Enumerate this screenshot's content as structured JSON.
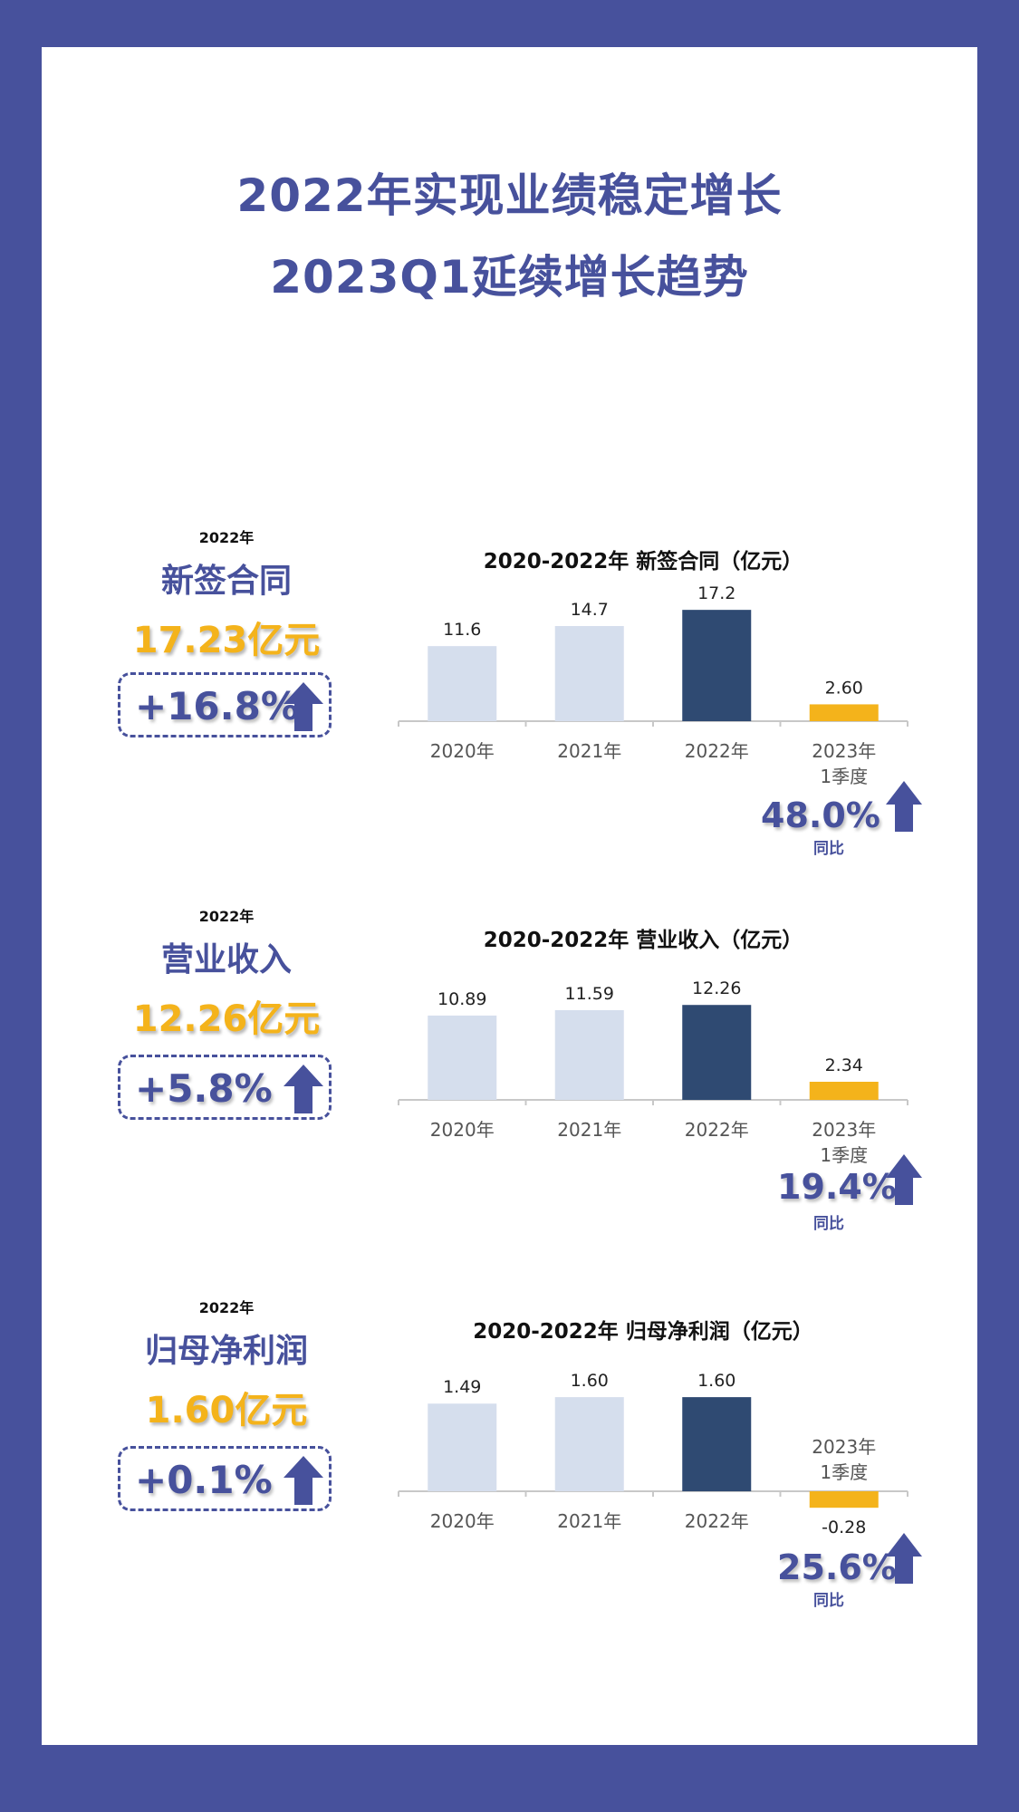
{
  "headline": {
    "line1": "2022年实现业绩稳定增长",
    "line2": "2023Q1延续增长趋势"
  },
  "colors": {
    "frame": "#47519c",
    "accent": "#f4b31b",
    "bar_light": "#d5deed",
    "bar_dark": "#2f4a72",
    "bar_q1": "#f4b31b"
  },
  "icons": {
    "growth": "up-arrow-icon"
  },
  "sections": [
    {
      "year_label": "2022年",
      "metric_name": "新签合同",
      "metric_value": "17.23亿元",
      "growth": "+16.8%",
      "yoy_value": "48.0%",
      "yoy_label": "同比"
    },
    {
      "year_label": "2022年",
      "metric_name": "营业收入",
      "metric_value": "12.26亿元",
      "growth": "+5.8%",
      "yoy_value": "19.4%",
      "yoy_label": "同比"
    },
    {
      "year_label": "2022年",
      "metric_name": "归母净利润",
      "metric_value": "1.60亿元",
      "growth": "+0.1%",
      "yoy_value": "25.6%",
      "yoy_label": "同比"
    }
  ],
  "chart_data": [
    {
      "type": "bar",
      "title": "2020-2022年 新签合同（亿元）",
      "categories": [
        "2020年",
        "2021年",
        "2022年",
        "2023年1季度"
      ],
      "category_lines": [
        [
          "2020年"
        ],
        [
          "2021年"
        ],
        [
          "2022年"
        ],
        [
          "2023年",
          "1季度"
        ]
      ],
      "values": [
        11.6,
        14.7,
        17.2,
        2.6
      ],
      "value_labels": [
        "11.6",
        "14.7",
        "17.2",
        "2.60"
      ],
      "grid": false
    },
    {
      "type": "bar",
      "title": "2020-2022年 营业收入（亿元）",
      "categories": [
        "2020年",
        "2021年",
        "2022年",
        "2023年1季度"
      ],
      "category_lines": [
        [
          "2020年"
        ],
        [
          "2021年"
        ],
        [
          "2022年"
        ],
        [
          "2023年",
          "1季度"
        ]
      ],
      "values": [
        10.89,
        11.59,
        12.26,
        2.34
      ],
      "value_labels": [
        "10.89",
        "11.59",
        "12.26",
        "2.34"
      ],
      "grid": false
    },
    {
      "type": "bar",
      "title": "2020-2022年 归母净利润（亿元）",
      "categories": [
        "2020年",
        "2021年",
        "2022年",
        "2023年1季度"
      ],
      "category_lines": [
        [
          "2020年"
        ],
        [
          "2021年"
        ],
        [
          "2022年"
        ],
        [
          "2023年",
          "1季度"
        ]
      ],
      "values": [
        1.49,
        1.6,
        1.6,
        -0.28
      ],
      "value_labels": [
        "1.49",
        "1.60",
        "1.60",
        "-0.28"
      ],
      "grid": false
    }
  ]
}
